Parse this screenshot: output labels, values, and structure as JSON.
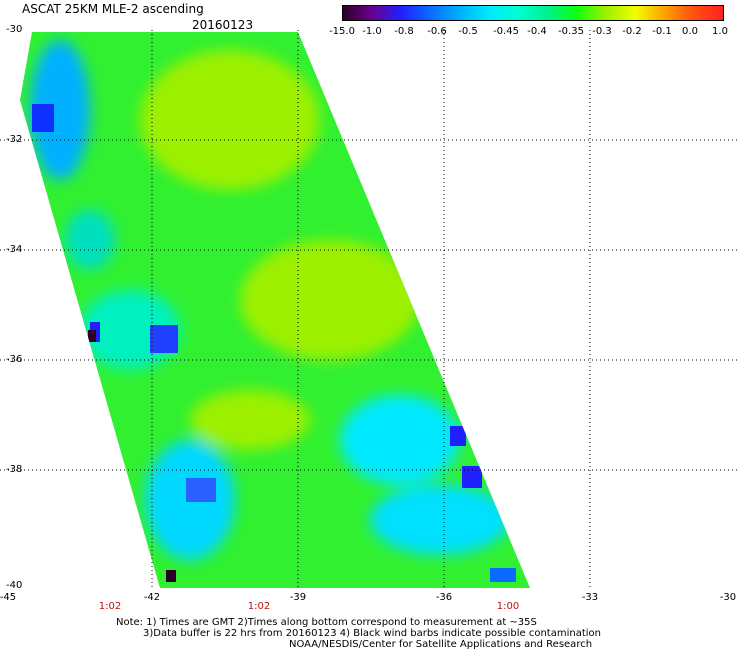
{
  "header": {
    "title": "ASCAT 25KM MLE-2 ascending",
    "date": "20160123"
  },
  "colorbar": {
    "labels": [
      "-15.0",
      "-1.0",
      "-0.8",
      "-0.6",
      "-0.5",
      "-0.45",
      "-0.4",
      "-0.35",
      "-0.3",
      "-0.2",
      "-0.1",
      "0.0",
      "1.0"
    ],
    "colors": [
      "#2a0024",
      "#6a0090",
      "#2020ff",
      "#0a6cff",
      "#00b0ff",
      "#00eaff",
      "#00ffd0",
      "#00f090",
      "#10ff10",
      "#9cf000",
      "#f0ff00",
      "#ffa000",
      "#ff5010",
      "#ff2020"
    ]
  },
  "map": {
    "lat_labels": [
      "-30",
      "-32",
      "-34",
      "-36",
      "-38",
      "-40"
    ],
    "lon_labels": [
      "-45",
      "-42",
      "-39",
      "-36",
      "-33",
      "-30"
    ],
    "time_labels": [
      "1:02",
      "1:02",
      "1:00"
    ]
  },
  "notes": {
    "line1": "Note: 1) Times are GMT 2)Times along bottom correspond to measurement at ~35S",
    "line2": "3)Data buffer is 22 hrs from 20160123 4) Black wind barbs indicate possible contamination",
    "line3": "NOAA/NESDIS/Center for Satellite Applications and Research"
  }
}
